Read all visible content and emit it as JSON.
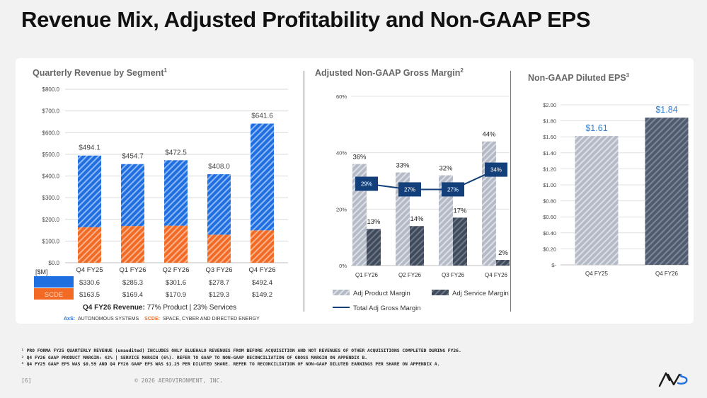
{
  "title": "Revenue Mix, Adjusted Profitability and Non-GAAP EPS",
  "colors": {
    "axs_blue": "#1f6fe0",
    "scde_orange": "#f26a24",
    "product_gray": "#b4bac6",
    "service_dark": "#3f4a5a",
    "eps_q4fy25": "#b4bac6",
    "eps_q4fy26": "#4f5b6e",
    "accent_navy": "#13407a",
    "eps_label_blue": "#2f7fd3"
  },
  "chart_data": [
    {
      "type": "bar",
      "stacked": true,
      "title": "Quarterly Revenue by Segment",
      "title_footnote": "1",
      "categories": [
        "Q4 FY25",
        "Q1 FY26",
        "Q2 FY26",
        "Q3 FY26",
        "Q4 FY26"
      ],
      "totals": [
        "$494.1",
        "$454.7",
        "$472.5",
        "$408.0",
        "$641.6"
      ],
      "series": [
        {
          "name": "AxS",
          "values": [
            330.6,
            285.3,
            301.6,
            278.7,
            492.4
          ],
          "labels": [
            "$330.6",
            "$285.3",
            "$301.6",
            "$278.7",
            "$492.4"
          ]
        },
        {
          "name": "SCDE",
          "values": [
            163.5,
            169.4,
            170.9,
            129.3,
            149.2
          ],
          "labels": [
            "$163.5",
            "$169.4",
            "$170.9",
            "$129.3",
            "$149.2"
          ]
        }
      ],
      "unit_label": "[$M]",
      "ylim": [
        0,
        800
      ],
      "yticks": [
        "$0.0",
        "$100.0",
        "$200.0",
        "$300.0",
        "$400.0",
        "$500.0",
        "$600.0",
        "$700.0",
        "$800.0"
      ],
      "grid": true,
      "note_bold": "Q4 FY26 Revenue:",
      "note_rest": " 77% Product | 23% Services",
      "legend_key_axs": "AxS:",
      "legend_val_axs": "AUTONOMOUS SYSTEMS",
      "legend_key_scde": "SCDE:",
      "legend_val_scde": "SPACE, CYBER AND DIRECTED ENERGY"
    },
    {
      "type": "bar",
      "title": "Adjusted Non-GAAP Gross Margin",
      "title_footnote": "2",
      "categories": [
        "Q1 FY26",
        "Q2 FY26",
        "Q3 FY26",
        "Q4 FY26"
      ],
      "series": [
        {
          "name": "Adj Product Margin",
          "values": [
            36,
            33,
            32,
            44
          ],
          "labels": [
            "36%",
            "33%",
            "32%",
            "44%"
          ]
        },
        {
          "name": "Adj Service Margin",
          "values": [
            13,
            14,
            17,
            2
          ],
          "labels": [
            "13%",
            "14%",
            "17%",
            "2%"
          ]
        },
        {
          "name": "Total Adj Gross Margin",
          "type": "line",
          "values": [
            29,
            27,
            27,
            34
          ],
          "labels": [
            "29%",
            "27%",
            "27%",
            "34%"
          ]
        }
      ],
      "ylim": [
        0,
        60
      ],
      "yticks": [
        "0%",
        "20%",
        "40%",
        "60%"
      ],
      "grid": true,
      "legend": "bottom"
    },
    {
      "type": "bar",
      "title": "Non-GAAP Diluted EPS",
      "title_footnote": "3",
      "categories": [
        "Q4 FY25",
        "Q4 FY26"
      ],
      "values": [
        1.61,
        1.84
      ],
      "labels": [
        "$1.61",
        "$1.84"
      ],
      "ylim": [
        0,
        2
      ],
      "yticks": [
        "$-",
        "$0.20",
        "$0.40",
        "$0.60",
        "$0.80",
        "$1.00",
        "$1.20",
        "$1.40",
        "$1.60",
        "$1.80",
        "$2.00"
      ],
      "grid": true
    }
  ],
  "footnotes": [
    "¹ PRO FORMA FY25 QUARTERLY REVENUE (unaudited) INCLUDES ONLY BLUEHALO REVENUES FROM BEFORE ACQUISITION AND NOT REVENUES OF OTHER ACQUISITIONS COMPLETED DURING FY26.",
    "² Q4 FY26 GAAP PRODUCT MARGIN: 42% | SERVICE MARGIN (6%).  REFER TO GAAP TO NON-GAAP RECONCILIATION OF GROSS MARGIN ON APPENDIX B.",
    "³ Q4 FY25 GAAP EPS WAS $0.59 AND Q4 FY26 GAAP EPS WAS $1.25 PER DILUTED SHARE. REFER TO RECONCILIATION OF NON-GAAP DILUTED EARNINGS PER SHARE ON APPENDIX A."
  ],
  "footer": {
    "page": "[6]",
    "copyright": "© 2026 AEROVIRONMENT, INC."
  },
  "logo_icon": "av-logo-icon"
}
